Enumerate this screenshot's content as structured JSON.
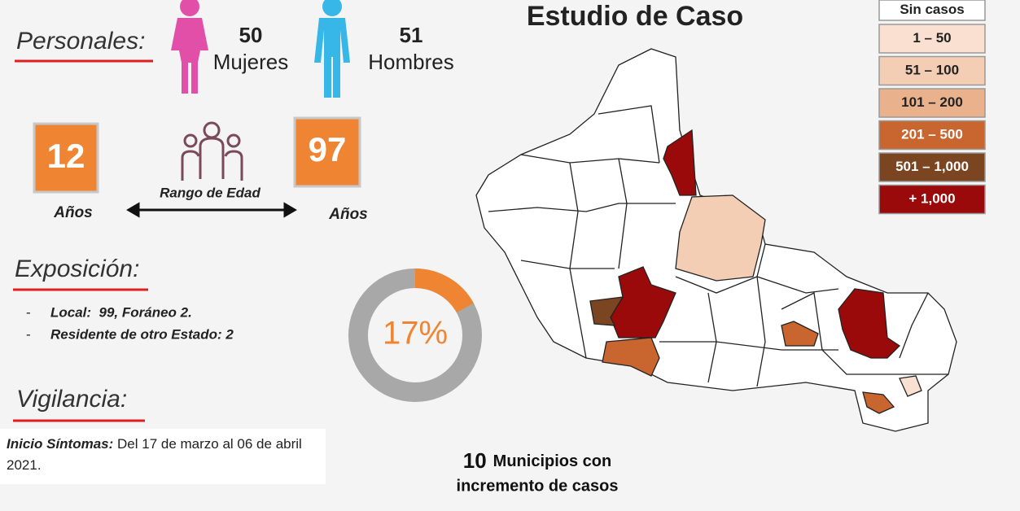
{
  "header": {
    "title": "Estudio de Caso"
  },
  "personales": {
    "heading": "Personales:",
    "women_count": 50,
    "women_label": "Mujeres",
    "men_count": 51,
    "men_label": "Hombres"
  },
  "edad": {
    "min": 12,
    "min_unit": "Años",
    "label": "Rango de Edad",
    "max": 97,
    "max_unit": "Años"
  },
  "exposicion": {
    "heading": "Exposición:",
    "items": [
      "Local:  99, Foráneo 2.",
      "Residente de otro Estado: 2"
    ]
  },
  "donut": {
    "value": 17,
    "label": "17%"
  },
  "vigilancia": {
    "heading": "Vigilancia:",
    "label": "Inicio Síntomas:",
    "text": " Del 17 de marzo al 06 de abril 2021."
  },
  "legend": [
    {
      "label": "Sin casos",
      "color": "#ffffff",
      "text_color": "#222222"
    },
    {
      "label": "1 – 50",
      "color": "#f9e0d0",
      "text_color": "#222222"
    },
    {
      "label": "51 – 100",
      "color": "#f3cdb4",
      "text_color": "#222222"
    },
    {
      "label": "101 – 200",
      "color": "#eab28c",
      "text_color": "#222222"
    },
    {
      "label": "201 – 500",
      "color": "#c9652f",
      "text_color": "#ffffff"
    },
    {
      "label": "501 – 1,000",
      "color": "#7b4521",
      "text_color": "#ffffff"
    },
    {
      "label": "+ 1,000",
      "color": "#9b0a0a",
      "text_color": "#ffffff"
    }
  ],
  "municipios": {
    "count": 10,
    "line1": "Municipios con",
    "line2": "incremento de casos"
  }
}
